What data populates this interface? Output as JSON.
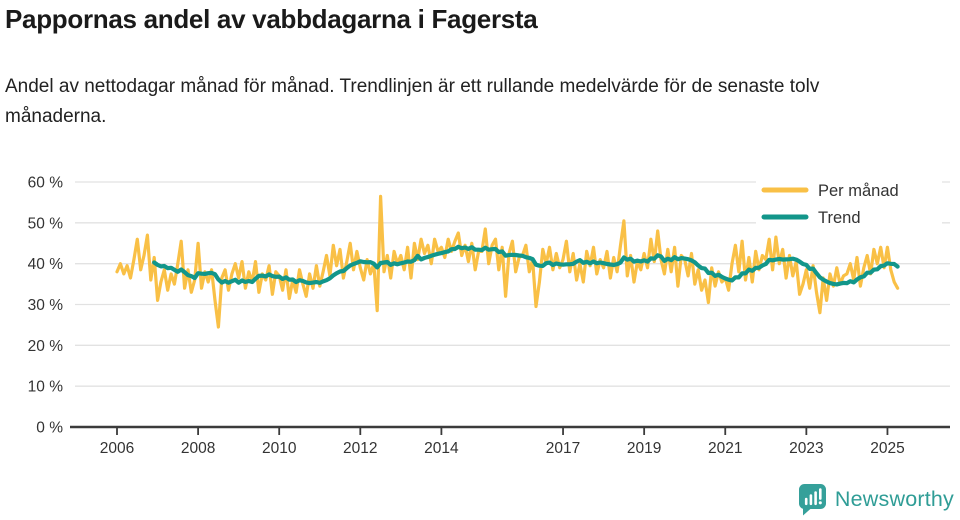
{
  "page": {
    "title": "Pappornas andel av vabbdagarna i Fagersta",
    "subtitle": "Andel av nettodagar månad för månad. Trendlinjen är ett rullande medelvärde för de senaste tolv månaderna."
  },
  "chart_data": {
    "type": "line",
    "title": "Pappornas andel av vabbdagarna i Fagersta",
    "x_unit": "month",
    "x_start": "2006-01",
    "x_end": "2025-04",
    "xlabel": "",
    "ylabel": "",
    "ylim": [
      0,
      60
    ],
    "y_tick_values": [
      0,
      10,
      20,
      30,
      40,
      50,
      60
    ],
    "y_tick_suffix": " %",
    "x_tick_years": [
      2006,
      2008,
      2010,
      2012,
      2014,
      2017,
      2019,
      2021,
      2023,
      2025
    ],
    "grid": "horizontal",
    "legend_position": "top-right",
    "series": [
      {
        "name": "Per månad",
        "color": "#f9c046",
        "values": [
          38,
          40,
          37.5,
          39.5,
          36.5,
          41,
          46,
          38.5,
          42,
          47,
          36,
          41.5,
          31,
          35.5,
          38.5,
          33.5,
          37.5,
          35,
          40,
          45.5,
          34,
          38.5,
          33,
          36,
          45,
          34,
          38,
          35.5,
          38.5,
          31,
          24.5,
          36.5,
          38.5,
          33.5,
          37.5,
          40,
          36.5,
          40.5,
          34,
          38,
          35.5,
          40.5,
          33,
          37.5,
          36,
          39.5,
          32.5,
          38,
          37,
          33.5,
          38.5,
          31.5,
          36,
          33,
          38.5,
          35,
          32,
          37.5,
          34,
          39.5,
          34.5,
          38,
          42,
          37,
          44.5,
          39.5,
          43.5,
          36.5,
          40.5,
          45,
          38.5,
          43,
          39,
          36,
          41,
          37.5,
          40,
          28.5,
          56.5,
          38,
          42,
          36.5,
          43,
          40,
          42,
          38.5,
          44,
          36.5,
          45,
          41,
          46,
          42.5,
          44.5,
          40,
          46,
          43,
          44,
          41.5,
          46,
          43,
          45.5,
          47.5,
          42,
          44.5,
          40.5,
          45,
          38.5,
          43,
          43,
          48.5,
          40,
          44.5,
          46,
          38.5,
          44,
          32,
          42.5,
          45.5,
          38,
          41.5,
          42,
          44.5,
          38,
          41,
          29.5,
          35.5,
          43.5,
          40,
          44,
          38.5,
          42.5,
          39,
          41,
          45.5,
          38,
          42.5,
          36,
          40,
          35.5,
          43,
          39.5,
          44,
          37.5,
          41,
          39,
          43,
          36.5,
          41.5,
          38,
          44.5,
          50.5,
          37,
          42,
          35.5,
          40.5,
          38.5,
          42.5,
          39,
          46,
          40.5,
          48,
          41,
          37.5,
          43.5,
          38,
          44,
          34.5,
          42,
          41,
          37,
          42.5,
          35,
          38.5,
          33.5,
          36,
          30.5,
          39,
          34.5,
          38,
          35.5,
          36.5,
          33.5,
          40,
          44.5,
          38,
          45.5,
          36,
          41.5,
          35.5,
          43,
          38.5,
          42,
          41,
          46,
          38.5,
          46.5,
          40,
          43.5,
          36.5,
          42,
          37,
          40.5,
          32.5,
          35,
          38.5,
          34,
          39.5,
          33,
          28,
          36.5,
          31,
          37.5,
          34.5,
          39,
          35,
          37,
          37.5,
          40,
          36,
          41.5,
          34.5,
          39,
          42,
          37.5,
          43.5,
          40,
          44,
          39,
          44,
          38.5,
          35.5,
          34
        ]
      },
      {
        "name": "Trend",
        "color": "#12968a",
        "derived_from": "Per månad",
        "derivation": "rolling_mean_12_months"
      }
    ]
  },
  "branding": {
    "name": "Newsworthy",
    "color": "#2f9d96",
    "icon": "bar-chart-speech-bubble"
  }
}
